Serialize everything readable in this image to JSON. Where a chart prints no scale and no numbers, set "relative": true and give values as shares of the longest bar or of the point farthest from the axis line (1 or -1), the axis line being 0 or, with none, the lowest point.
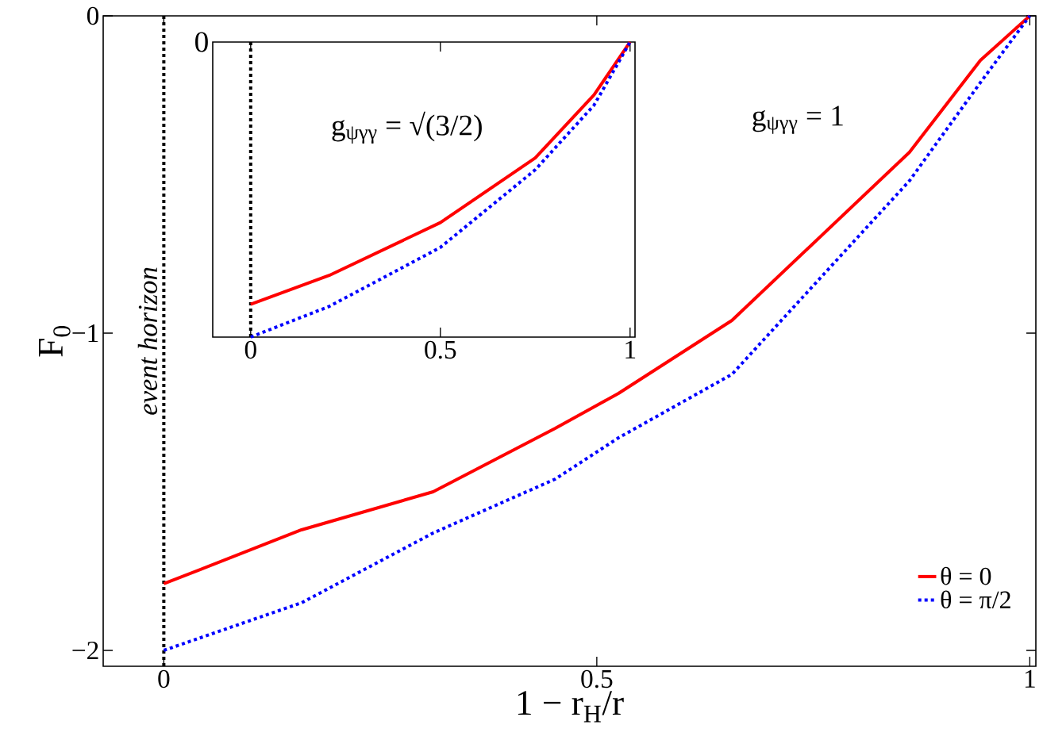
{
  "chart_data": [
    {
      "type": "line",
      "xlabel": "1 − r$_{H}$/r",
      "ylabel": "F$_{0}$",
      "x": [
        0,
        0.159,
        0.311,
        0.452,
        0.525,
        0.656,
        0.861,
        0.943,
        1
      ],
      "series": [
        {
          "name": "θ = 0",
          "color": "#ff0000",
          "line_style": "solid",
          "values": [
            -1.79,
            -1.62,
            -1.5,
            -1.3,
            -1.19,
            -0.96,
            -0.43,
            -0.14,
            0
          ]
        },
        {
          "name": "θ = π/2",
          "color": "#0000ff",
          "line_style": "dotted",
          "values": [
            -2.0,
            -1.85,
            -1.63,
            -1.46,
            -1.33,
            -1.13,
            -0.52,
            -0.21,
            0
          ]
        }
      ],
      "xlim": [
        -0.07,
        1.007
      ],
      "ylim": [
        -2.05,
        0
      ],
      "xticks": [
        0,
        0.5,
        1
      ],
      "yticks": [
        {
          "value": -2,
          "label": "−2"
        },
        {
          "value": -1,
          "label": "−1"
        },
        0
      ],
      "ref_lines": [
        {
          "axis": "x",
          "value": 0,
          "label": "event horizon",
          "color": "#000000",
          "line_style": "dotted"
        }
      ],
      "annotations": [
        "g$_{ψγγ}$ = 1"
      ],
      "legend": "bottom right"
    },
    {
      "type": "line",
      "relative": true,
      "x": [
        0,
        0.207,
        0.5,
        0.75,
        0.905,
        1
      ],
      "series": [
        {
          "color": "#ff0000",
          "line_style": "solid",
          "values": [
            -0.889,
            -0.791,
            -0.612,
            -0.393,
            -0.179,
            0
          ]
        },
        {
          "color": "#0000ff",
          "line_style": "dotted",
          "values": [
            -1,
            -0.896,
            -0.696,
            -0.433,
            -0.214,
            0
          ]
        }
      ],
      "xlim": [
        -0.1,
        1.013
      ],
      "xticks": [
        0,
        0.5,
        1
      ],
      "ref_lines": [
        {
          "axis": "x",
          "value": 0,
          "color": "#000000",
          "line_style": "dotted"
        }
      ],
      "annotations": [
        "g$_{ψγγ}$ = √(3/2)",
        "0"
      ]
    }
  ]
}
